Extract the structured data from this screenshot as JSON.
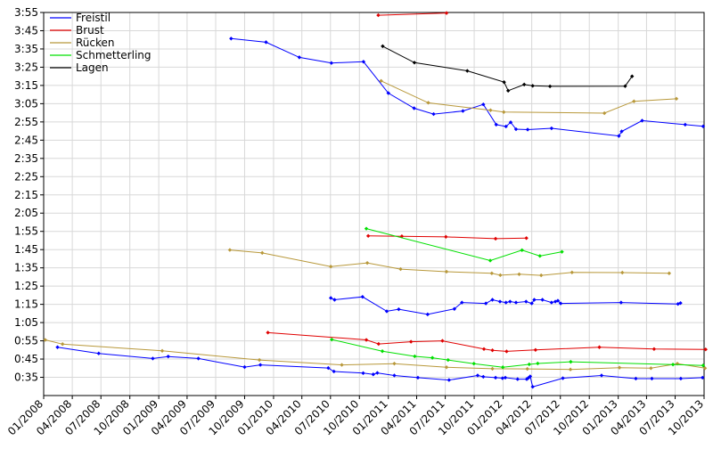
{
  "chart_data": {
    "type": "line",
    "title": "",
    "xlabel": "",
    "ylabel": "",
    "x_type": "date",
    "xlim": [
      "2008-01-01",
      "2013-10-01"
    ],
    "ylim": [
      25,
      235
    ],
    "y_unit": "seconds",
    "x_ticks": [
      {
        "date": "2008-01-01",
        "label": "01/2008"
      },
      {
        "date": "2008-04-01",
        "label": "04/2008"
      },
      {
        "date": "2008-07-01",
        "label": "07/2008"
      },
      {
        "date": "2008-10-01",
        "label": "10/2008"
      },
      {
        "date": "2009-01-01",
        "label": "01/2009"
      },
      {
        "date": "2009-04-01",
        "label": "04/2009"
      },
      {
        "date": "2009-07-01",
        "label": "07/2009"
      },
      {
        "date": "2009-10-01",
        "label": "10/2009"
      },
      {
        "date": "2010-01-01",
        "label": "01/2010"
      },
      {
        "date": "2010-04-01",
        "label": "04/2010"
      },
      {
        "date": "2010-07-01",
        "label": "07/2010"
      },
      {
        "date": "2010-10-01",
        "label": "10/2010"
      },
      {
        "date": "2011-01-01",
        "label": "01/2011"
      },
      {
        "date": "2011-04-01",
        "label": "04/2011"
      },
      {
        "date": "2011-07-01",
        "label": "07/2011"
      },
      {
        "date": "2011-10-01",
        "label": "10/2011"
      },
      {
        "date": "2012-01-01",
        "label": "01/2012"
      },
      {
        "date": "2012-04-01",
        "label": "04/2012"
      },
      {
        "date": "2012-07-01",
        "label": "07/2012"
      },
      {
        "date": "2012-10-01",
        "label": "10/2012"
      },
      {
        "date": "2013-01-01",
        "label": "01/2013"
      },
      {
        "date": "2013-04-01",
        "label": "04/2013"
      },
      {
        "date": "2013-07-01",
        "label": "07/2013"
      },
      {
        "date": "2013-10-01",
        "label": "10/2013"
      }
    ],
    "y_ticks": [
      {
        "value": 35,
        "label": "0:35"
      },
      {
        "value": 45,
        "label": "0:45"
      },
      {
        "value": 55,
        "label": "0:55"
      },
      {
        "value": 65,
        "label": "1:05"
      },
      {
        "value": 75,
        "label": "1:15"
      },
      {
        "value": 85,
        "label": "1:25"
      },
      {
        "value": 95,
        "label": "1:35"
      },
      {
        "value": 105,
        "label": "1:45"
      },
      {
        "value": 115,
        "label": "1:55"
      },
      {
        "value": 125,
        "label": "2:05"
      },
      {
        "value": 135,
        "label": "2:15"
      },
      {
        "value": 145,
        "label": "2:25"
      },
      {
        "value": 155,
        "label": "2:35"
      },
      {
        "value": 165,
        "label": "2:45"
      },
      {
        "value": 175,
        "label": "2:55"
      },
      {
        "value": 185,
        "label": "3:05"
      },
      {
        "value": 195,
        "label": "3:15"
      },
      {
        "value": 205,
        "label": "3:25"
      },
      {
        "value": 215,
        "label": "3:35"
      },
      {
        "value": 225,
        "label": "3:45"
      },
      {
        "value": 235,
        "label": "3:55"
      }
    ],
    "legend": {
      "placement": "top-left",
      "entries": [
        {
          "name": "Freistil",
          "color": "#0000ff"
        },
        {
          "name": "Brust",
          "color": "#e00000"
        },
        {
          "name": "Rücken",
          "color": "#b8983a"
        },
        {
          "name": "Schmetterling",
          "color": "#00e000"
        },
        {
          "name": "Lagen",
          "color": "#000000"
        }
      ]
    },
    "grid": true,
    "series": [
      {
        "name": "Freistil",
        "color": "#0000ff",
        "points": [
          [
            "2008-02-14",
            51.5
          ],
          [
            "2008-06-24",
            48.1
          ],
          [
            "2008-12-13",
            45.3
          ],
          [
            "2009-01-31",
            46.4
          ],
          [
            "2009-05-07",
            45.3
          ],
          [
            "2009-10-01",
            40.6
          ],
          [
            "2009-11-20",
            41.8
          ],
          [
            "2010-06-24",
            40.1
          ],
          [
            "2010-07-12",
            38.2
          ],
          [
            "2010-10-13",
            37.3
          ],
          [
            "2010-11-14",
            36.6
          ],
          [
            "2010-11-27",
            37.4
          ],
          [
            "2011-01-20",
            36.0
          ],
          [
            "2011-04-05",
            34.8
          ],
          [
            "2011-07-13",
            33.5
          ],
          [
            "2011-10-12",
            36.0
          ],
          [
            "2011-10-30",
            35.3
          ],
          [
            "2011-12-08",
            34.8
          ],
          [
            "2011-12-30",
            34.5
          ],
          [
            "2012-01-08",
            34.8
          ],
          [
            "2012-02-16",
            34.0
          ],
          [
            "2012-03-16",
            34.0
          ],
          [
            "2012-03-21",
            34.6
          ],
          [
            "2012-03-27",
            35.5
          ],
          [
            "2012-04-04",
            29.8
          ],
          [
            "2012-07-09",
            34.5
          ],
          [
            "2012-11-09",
            36.0
          ],
          [
            "2013-02-26",
            34.3
          ],
          [
            "2013-04-18",
            34.3
          ],
          [
            "2013-07-19",
            34.3
          ],
          [
            "2013-09-26",
            34.8
          ]
        ]
      },
      {
        "name": "Freistil",
        "color": "#0000ff",
        "points": [
          [
            "2010-07-02",
            78.5
          ],
          [
            "2010-07-14",
            77.5
          ],
          [
            "2010-10-11",
            79.1
          ],
          [
            "2010-12-27",
            71.2
          ],
          [
            "2011-02-03",
            72.3
          ],
          [
            "2011-05-06",
            69.5
          ],
          [
            "2011-07-30",
            72.5
          ],
          [
            "2011-08-23",
            76.0
          ],
          [
            "2011-11-07",
            75.5
          ],
          [
            "2011-11-28",
            77.5
          ],
          [
            "2011-12-22",
            76.5
          ],
          [
            "2012-01-10",
            76.0
          ],
          [
            "2012-01-23",
            76.5
          ],
          [
            "2012-02-11",
            76.0
          ],
          [
            "2012-03-14",
            76.5
          ],
          [
            "2012-04-01",
            75.5
          ],
          [
            "2012-04-09",
            77.5
          ],
          [
            "2012-05-05",
            77.5
          ],
          [
            "2012-06-03",
            76.0
          ],
          [
            "2012-06-15",
            76.5
          ],
          [
            "2012-06-23",
            77.0
          ],
          [
            "2012-07-02",
            75.5
          ],
          [
            "2013-01-10",
            76.0
          ],
          [
            "2013-07-10",
            75.2
          ],
          [
            "2013-07-18",
            75.7
          ]
        ]
      },
      {
        "name": "Freistil",
        "color": "#0000ff",
        "points": [
          [
            "2009-08-19",
            220.7
          ],
          [
            "2009-12-08",
            218.7
          ],
          [
            "2010-03-24",
            210.4
          ],
          [
            "2010-07-04",
            207.3
          ],
          [
            "2010-10-14",
            208.0
          ],
          [
            "2011-01-01",
            190.8
          ],
          [
            "2011-03-24",
            182.5
          ],
          [
            "2011-05-25",
            179.3
          ],
          [
            "2011-08-26",
            181.0
          ],
          [
            "2011-10-30",
            184.6
          ],
          [
            "2011-12-10",
            173.5
          ],
          [
            "2012-01-10",
            172.5
          ],
          [
            "2012-01-25",
            174.8
          ],
          [
            "2012-02-11",
            171.0
          ],
          [
            "2012-03-19",
            170.8
          ],
          [
            "2012-06-03",
            171.5
          ],
          [
            "2013-01-03",
            167.3
          ],
          [
            "2013-01-12",
            169.8
          ],
          [
            "2013-03-18",
            175.7
          ],
          [
            "2013-08-02",
            173.5
          ],
          [
            "2013-09-28",
            172.6
          ]
        ]
      },
      {
        "name": "Brust",
        "color": "#e00000",
        "points": [
          [
            "2009-12-14",
            59.5
          ],
          [
            "2010-10-23",
            55.5
          ],
          [
            "2010-12-01",
            53.3
          ],
          [
            "2011-03-14",
            54.5
          ],
          [
            "2011-06-22",
            55.0
          ],
          [
            "2011-11-01",
            50.5
          ],
          [
            "2011-11-28",
            49.8
          ],
          [
            "2012-01-12",
            49.2
          ],
          [
            "2012-04-13",
            50.0
          ],
          [
            "2012-11-02",
            51.5
          ],
          [
            "2013-04-25",
            50.5
          ],
          [
            "2013-10-06",
            50.3
          ]
        ]
      },
      {
        "name": "Brust",
        "color": "#e00000",
        "points": [
          [
            "2010-10-29",
            112.5
          ],
          [
            "2011-02-13",
            112.3
          ],
          [
            "2011-07-03",
            112.0
          ],
          [
            "2011-12-08",
            111.0
          ],
          [
            "2012-03-15",
            111.3
          ]
        ]
      },
      {
        "name": "Brust",
        "color": "#e00000",
        "points": [
          [
            "2010-11-30",
            233.5
          ],
          [
            "2011-07-05",
            234.7
          ]
        ]
      },
      {
        "name": "Rücken",
        "color": "#b8983a",
        "points": [
          [
            "2008-01-06",
            55.5
          ],
          [
            "2008-03-01",
            53.2
          ],
          [
            "2009-01-12",
            49.5
          ],
          [
            "2009-11-17",
            44.5
          ],
          [
            "2010-08-06",
            41.8
          ],
          [
            "2011-01-20",
            42.5
          ],
          [
            "2011-07-05",
            40.5
          ],
          [
            "2011-11-28",
            39.7
          ],
          [
            "2012-03-18",
            39.6
          ],
          [
            "2012-08-02",
            39.3
          ],
          [
            "2013-01-05",
            40.3
          ],
          [
            "2013-04-15",
            40.0
          ],
          [
            "2013-07-08",
            42.5
          ],
          [
            "2013-10-04",
            40.0
          ]
        ]
      },
      {
        "name": "Rücken",
        "color": "#b8983a",
        "points": [
          [
            "2009-08-15",
            104.8
          ],
          [
            "2009-11-26",
            103.2
          ],
          [
            "2010-07-02",
            95.7
          ],
          [
            "2010-10-26",
            97.7
          ],
          [
            "2011-02-09",
            94.3
          ],
          [
            "2011-07-05",
            92.9
          ],
          [
            "2011-11-26",
            92.0
          ],
          [
            "2011-12-23",
            91.0
          ],
          [
            "2012-02-21",
            91.5
          ],
          [
            "2012-05-01",
            90.9
          ],
          [
            "2012-08-07",
            92.5
          ],
          [
            "2013-01-14",
            92.4
          ],
          [
            "2013-06-12",
            92.0
          ]
        ]
      },
      {
        "name": "Rücken",
        "color": "#b8983a",
        "points": [
          [
            "2010-12-09",
            197.5
          ],
          [
            "2011-05-08",
            185.5
          ],
          [
            "2011-11-22",
            181.4
          ],
          [
            "2012-01-03",
            180.4
          ],
          [
            "2012-11-18",
            179.8
          ],
          [
            "2013-02-20",
            186.3
          ],
          [
            "2013-07-05",
            187.7
          ]
        ]
      },
      {
        "name": "Schmetterling",
        "color": "#00e000",
        "points": [
          [
            "2010-07-05",
            55.7
          ],
          [
            "2010-12-13",
            49.3
          ],
          [
            "2011-03-26",
            46.5
          ],
          [
            "2011-05-21",
            45.7
          ],
          [
            "2011-07-10",
            44.5
          ],
          [
            "2011-09-30",
            42.5
          ],
          [
            "2011-12-31",
            40.5
          ],
          [
            "2012-03-24",
            42.1
          ],
          [
            "2012-04-20",
            42.6
          ],
          [
            "2012-08-03",
            43.5
          ],
          [
            "2013-06-24",
            42.0
          ],
          [
            "2013-09-28",
            41.5
          ]
        ]
      },
      {
        "name": "Schmetterling",
        "color": "#00e000",
        "points": [
          [
            "2010-10-23",
            116.5
          ],
          [
            "2011-11-21",
            99.0
          ],
          [
            "2012-03-01",
            104.7
          ],
          [
            "2012-04-27",
            101.5
          ],
          [
            "2012-07-06",
            103.8
          ]
        ]
      },
      {
        "name": "Lagen",
        "color": "#000000",
        "points": [
          [
            "2010-12-14",
            216.5
          ],
          [
            "2011-03-25",
            207.5
          ],
          [
            "2011-09-09",
            203.0
          ],
          [
            "2012-01-04",
            196.8
          ],
          [
            "2012-01-17",
            192.1
          ],
          [
            "2012-03-08",
            195.5
          ],
          [
            "2012-04-04",
            194.8
          ],
          [
            "2012-05-29",
            194.5
          ],
          [
            "2013-01-23",
            194.6
          ],
          [
            "2013-02-14",
            200.0
          ]
        ]
      }
    ]
  }
}
